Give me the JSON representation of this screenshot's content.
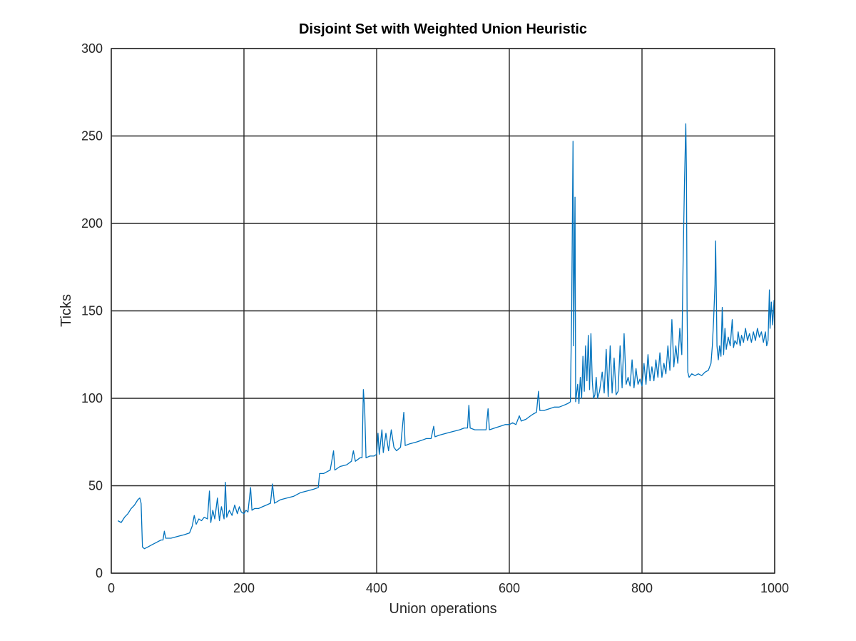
{
  "chart_data": {
    "type": "line",
    "title": "Disjoint Set with Weighted Union Heuristic",
    "xlabel": "Union operations",
    "ylabel": "Ticks",
    "xlim": [
      0,
      1000
    ],
    "ylim": [
      0,
      300
    ],
    "xticks": [
      0,
      200,
      400,
      600,
      800,
      1000
    ],
    "yticks": [
      0,
      50,
      100,
      150,
      200,
      250,
      300
    ],
    "xtick_labels": [
      "0",
      "200",
      "400",
      "600",
      "800",
      "1000"
    ],
    "ytick_labels": [
      "0",
      "50",
      "100",
      "150",
      "200",
      "250",
      "300"
    ],
    "grid": true,
    "legend": "none",
    "series": [
      {
        "color": "#0072BD",
        "points": [
          [
            10,
            30
          ],
          [
            15,
            29
          ],
          [
            20,
            32
          ],
          [
            25,
            34
          ],
          [
            30,
            37
          ],
          [
            35,
            39
          ],
          [
            40,
            42
          ],
          [
            43,
            43
          ],
          [
            45,
            40
          ],
          [
            47,
            15
          ],
          [
            50,
            14
          ],
          [
            55,
            15
          ],
          [
            60,
            16
          ],
          [
            65,
            17
          ],
          [
            70,
            18
          ],
          [
            75,
            19
          ],
          [
            78,
            19
          ],
          [
            80,
            24
          ],
          [
            82,
            20
          ],
          [
            90,
            20
          ],
          [
            100,
            21
          ],
          [
            110,
            22
          ],
          [
            118,
            23
          ],
          [
            122,
            27
          ],
          [
            125,
            33
          ],
          [
            128,
            28
          ],
          [
            132,
            31
          ],
          [
            136,
            30
          ],
          [
            140,
            32
          ],
          [
            145,
            31
          ],
          [
            148,
            47
          ],
          [
            150,
            29
          ],
          [
            153,
            36
          ],
          [
            156,
            31
          ],
          [
            160,
            43
          ],
          [
            163,
            30
          ],
          [
            166,
            38
          ],
          [
            170,
            31
          ],
          [
            172,
            52
          ],
          [
            174,
            32
          ],
          [
            178,
            36
          ],
          [
            182,
            33
          ],
          [
            186,
            39
          ],
          [
            190,
            34
          ],
          [
            193,
            38
          ],
          [
            196,
            35
          ],
          [
            200,
            34
          ],
          [
            203,
            36
          ],
          [
            206,
            35
          ],
          [
            210,
            49
          ],
          [
            212,
            36
          ],
          [
            216,
            37
          ],
          [
            222,
            37
          ],
          [
            228,
            38
          ],
          [
            234,
            39
          ],
          [
            240,
            40
          ],
          [
            243,
            51
          ],
          [
            246,
            40
          ],
          [
            255,
            42
          ],
          [
            265,
            43
          ],
          [
            275,
            44
          ],
          [
            285,
            46
          ],
          [
            295,
            47
          ],
          [
            305,
            48
          ],
          [
            312,
            49
          ],
          [
            314,
            57
          ],
          [
            320,
            57
          ],
          [
            325,
            58
          ],
          [
            330,
            59
          ],
          [
            335,
            70
          ],
          [
            337,
            59
          ],
          [
            345,
            61
          ],
          [
            355,
            62
          ],
          [
            362,
            64
          ],
          [
            365,
            70
          ],
          [
            368,
            64
          ],
          [
            375,
            66
          ],
          [
            378,
            66
          ],
          [
            380,
            105
          ],
          [
            382,
            93
          ],
          [
            384,
            66
          ],
          [
            390,
            67
          ],
          [
            396,
            67
          ],
          [
            400,
            68
          ],
          [
            402,
            80
          ],
          [
            404,
            68
          ],
          [
            408,
            82
          ],
          [
            410,
            69
          ],
          [
            414,
            80
          ],
          [
            418,
            70
          ],
          [
            422,
            82
          ],
          [
            426,
            72
          ],
          [
            430,
            70
          ],
          [
            436,
            72
          ],
          [
            441,
            92
          ],
          [
            443,
            73
          ],
          [
            450,
            74
          ],
          [
            460,
            75
          ],
          [
            468,
            76
          ],
          [
            475,
            77
          ],
          [
            482,
            77
          ],
          [
            486,
            84
          ],
          [
            488,
            78
          ],
          [
            495,
            79
          ],
          [
            505,
            80
          ],
          [
            515,
            81
          ],
          [
            525,
            82
          ],
          [
            532,
            83
          ],
          [
            537,
            83
          ],
          [
            539,
            96
          ],
          [
            541,
            83
          ],
          [
            548,
            82
          ],
          [
            558,
            82
          ],
          [
            565,
            82
          ],
          [
            568,
            94
          ],
          [
            570,
            82
          ],
          [
            578,
            83
          ],
          [
            586,
            84
          ],
          [
            594,
            85
          ],
          [
            600,
            85
          ],
          [
            605,
            86
          ],
          [
            610,
            85
          ],
          [
            615,
            90
          ],
          [
            618,
            87
          ],
          [
            625,
            88
          ],
          [
            632,
            90
          ],
          [
            636,
            91
          ],
          [
            641,
            92
          ],
          [
            644,
            104
          ],
          [
            646,
            93
          ],
          [
            652,
            93
          ],
          [
            660,
            94
          ],
          [
            668,
            95
          ],
          [
            675,
            95
          ],
          [
            682,
            96
          ],
          [
            688,
            97
          ],
          [
            692,
            98
          ],
          [
            694,
            150
          ],
          [
            696,
            247
          ],
          [
            697,
            130
          ],
          [
            699,
            215
          ],
          [
            700,
            98
          ],
          [
            703,
            108
          ],
          [
            705,
            97
          ],
          [
            707,
            112
          ],
          [
            709,
            100
          ],
          [
            711,
            124
          ],
          [
            713,
            104
          ],
          [
            715,
            130
          ],
          [
            717,
            110
          ],
          [
            719,
            136
          ],
          [
            721,
            105
          ],
          [
            723,
            137
          ],
          [
            725,
            110
          ],
          [
            727,
            100
          ],
          [
            729,
            102
          ],
          [
            731,
            112
          ],
          [
            733,
            100
          ],
          [
            736,
            104
          ],
          [
            740,
            115
          ],
          [
            743,
            103
          ],
          [
            746,
            128
          ],
          [
            749,
            101
          ],
          [
            752,
            130
          ],
          [
            755,
            103
          ],
          [
            758,
            123
          ],
          [
            761,
            102
          ],
          [
            764,
            104
          ],
          [
            767,
            130
          ],
          [
            770,
            106
          ],
          [
            773,
            137
          ],
          [
            776,
            108
          ],
          [
            779,
            112
          ],
          [
            782,
            107
          ],
          [
            785,
            122
          ],
          [
            788,
            106
          ],
          [
            791,
            117
          ],
          [
            794,
            108
          ],
          [
            797,
            111
          ],
          [
            800,
            107
          ],
          [
            803,
            120
          ],
          [
            806,
            108
          ],
          [
            809,
            125
          ],
          [
            812,
            110
          ],
          [
            815,
            118
          ],
          [
            818,
            110
          ],
          [
            821,
            122
          ],
          [
            824,
            112
          ],
          [
            827,
            126
          ],
          [
            830,
            112
          ],
          [
            833,
            120
          ],
          [
            836,
            114
          ],
          [
            839,
            130
          ],
          [
            842,
            116
          ],
          [
            845,
            145
          ],
          [
            848,
            118
          ],
          [
            851,
            130
          ],
          [
            854,
            120
          ],
          [
            857,
            140
          ],
          [
            860,
            125
          ],
          [
            862,
            180
          ],
          [
            864,
            222
          ],
          [
            866,
            257
          ],
          [
            867,
            230
          ],
          [
            868,
            150
          ],
          [
            869,
            115
          ],
          [
            871,
            112
          ],
          [
            875,
            114
          ],
          [
            880,
            113
          ],
          [
            885,
            114
          ],
          [
            890,
            113
          ],
          [
            895,
            115
          ],
          [
            900,
            116
          ],
          [
            904,
            120
          ],
          [
            906,
            130
          ],
          [
            908,
            145
          ],
          [
            910,
            165
          ],
          [
            911,
            190
          ],
          [
            912,
            160
          ],
          [
            913,
            130
          ],
          [
            915,
            122
          ],
          [
            917,
            130
          ],
          [
            919,
            124
          ],
          [
            921,
            152
          ],
          [
            923,
            125
          ],
          [
            925,
            140
          ],
          [
            927,
            128
          ],
          [
            930,
            135
          ],
          [
            933,
            130
          ],
          [
            936,
            145
          ],
          [
            938,
            129
          ],
          [
            940,
            133
          ],
          [
            943,
            131
          ],
          [
            945,
            138
          ],
          [
            948,
            130
          ],
          [
            950,
            136
          ],
          [
            953,
            132
          ],
          [
            956,
            140
          ],
          [
            959,
            133
          ],
          [
            962,
            137
          ],
          [
            965,
            132
          ],
          [
            968,
            138
          ],
          [
            971,
            133
          ],
          [
            974,
            140
          ],
          [
            977,
            135
          ],
          [
            980,
            138
          ],
          [
            983,
            132
          ],
          [
            986,
            138
          ],
          [
            988,
            130
          ],
          [
            990,
            133
          ],
          [
            992,
            162
          ],
          [
            993,
            140
          ],
          [
            995,
            155
          ],
          [
            997,
            142
          ],
          [
            999,
            156
          ],
          [
            1000,
            140
          ]
        ]
      }
    ]
  }
}
